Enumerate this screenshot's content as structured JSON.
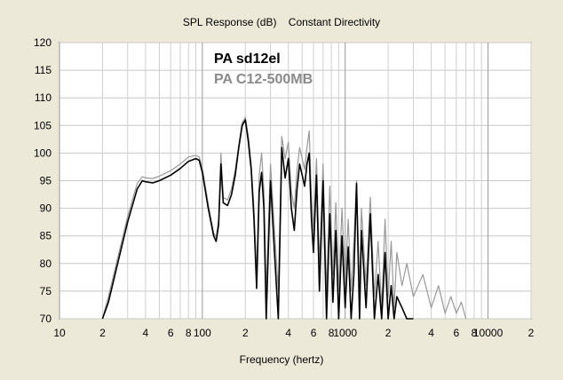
{
  "chart_data": {
    "type": "line",
    "title": "SPL Response (dB)    Constant Directivity",
    "xlabel": "Frequency (hertz)",
    "ylabel": "",
    "xscale": "log",
    "xlim": [
      10,
      20000
    ],
    "ylim": [
      70,
      120
    ],
    "grid": true,
    "legend_position": "top-left",
    "y_ticks": [
      "120",
      "115",
      "110",
      "105",
      "100",
      "95",
      "90",
      "85",
      "80",
      "75",
      "70"
    ],
    "x_ticks": [
      {
        "value": 10,
        "label": "10"
      },
      {
        "value": 20,
        "label": "2"
      },
      {
        "value": 40,
        "label": "4"
      },
      {
        "value": 60,
        "label": "6"
      },
      {
        "value": 80,
        "label": "8"
      },
      {
        "value": 100,
        "label": "100"
      },
      {
        "value": 200,
        "label": "2"
      },
      {
        "value": 400,
        "label": "4"
      },
      {
        "value": 600,
        "label": "6"
      },
      {
        "value": 800,
        "label": "8"
      },
      {
        "value": 1000,
        "label": "1000"
      },
      {
        "value": 2000,
        "label": "2"
      },
      {
        "value": 4000,
        "label": "4"
      },
      {
        "value": 6000,
        "label": "6"
      },
      {
        "value": 8000,
        "label": "8"
      },
      {
        "value": 10000,
        "label": "10000"
      },
      {
        "value": 20000,
        "label": "2"
      }
    ],
    "series": [
      {
        "name": "PA sd12el",
        "color": "#000000",
        "x": [
          20,
          22,
          25,
          30,
          35,
          38,
          40,
          45,
          50,
          60,
          70,
          80,
          90,
          95,
          100,
          110,
          120,
          125,
          130,
          135,
          140,
          150,
          160,
          170,
          180,
          190,
          200,
          210,
          220,
          230,
          240,
          250,
          260,
          270,
          280,
          300,
          320,
          340,
          360,
          380,
          400,
          420,
          440,
          460,
          480,
          500,
          520,
          540,
          560,
          580,
          600,
          630,
          660,
          700,
          740,
          780,
          820,
          860,
          900,
          950,
          1000,
          1050,
          1100,
          1150,
          1200,
          1260,
          1300,
          1400,
          1500,
          1600,
          1700,
          1800,
          1900,
          2000,
          2100,
          2200,
          2300,
          2500,
          2700,
          3000
        ],
        "y": [
          70,
          73,
          79,
          87.5,
          93.5,
          95,
          94.8,
          94.6,
          95,
          96,
          97.2,
          98.5,
          99,
          98.7,
          96.5,
          90,
          85,
          84,
          87,
          98,
          91,
          90.5,
          92.5,
          96,
          101,
          105,
          106,
          102,
          97,
          88,
          75.5,
          93,
          96.5,
          90,
          70,
          95,
          82,
          70,
          101,
          95.5,
          99,
          90,
          86,
          93.5,
          98,
          96,
          94,
          98,
          100,
          88,
          82,
          96,
          75,
          95,
          70,
          89,
          73,
          86,
          70,
          85,
          72,
          83,
          70,
          78,
          94.5,
          70,
          86,
          72,
          89,
          70,
          78,
          70,
          82,
          70,
          76,
          70,
          74,
          72,
          70,
          70
        ]
      },
      {
        "name": "PA C12-500MB",
        "color": "#999999",
        "x": [
          20,
          22,
          25,
          30,
          35,
          38,
          40,
          45,
          50,
          60,
          70,
          80,
          90,
          95,
          100,
          110,
          120,
          125,
          130,
          135,
          140,
          150,
          160,
          170,
          180,
          190,
          200,
          210,
          220,
          230,
          240,
          250,
          260,
          270,
          280,
          300,
          320,
          340,
          360,
          380,
          400,
          420,
          440,
          460,
          480,
          500,
          520,
          540,
          560,
          580,
          600,
          630,
          660,
          700,
          740,
          780,
          820,
          860,
          900,
          950,
          1000,
          1050,
          1100,
          1150,
          1200,
          1260,
          1300,
          1400,
          1500,
          1600,
          1700,
          1800,
          1900,
          2000,
          2100,
          2200,
          2300,
          2500,
          2700,
          3000,
          3500,
          4000,
          4500,
          5000,
          5500,
          6000,
          6500,
          7000
        ],
        "y": [
          70,
          74,
          80,
          88.5,
          94.5,
          95.7,
          95.5,
          95.4,
          95.8,
          96.8,
          98,
          99.3,
          99.6,
          99.3,
          97.2,
          90.8,
          85.5,
          84.8,
          88,
          100,
          92,
          91.5,
          93.5,
          97,
          101.5,
          105.5,
          106.5,
          103,
          98,
          90,
          78,
          96,
          100,
          93,
          75,
          98,
          86,
          75,
          103,
          99,
          102,
          93,
          90,
          97,
          101,
          99,
          97,
          101,
          104,
          92,
          86,
          99,
          80,
          98,
          75,
          94,
          78,
          91,
          75,
          90,
          77,
          88,
          75,
          84,
          95,
          75,
          90,
          76,
          92,
          74,
          84,
          72,
          88,
          74,
          84,
          72,
          82,
          76,
          80,
          74,
          78,
          72,
          76,
          71,
          74,
          71,
          73,
          70
        ]
      }
    ]
  }
}
